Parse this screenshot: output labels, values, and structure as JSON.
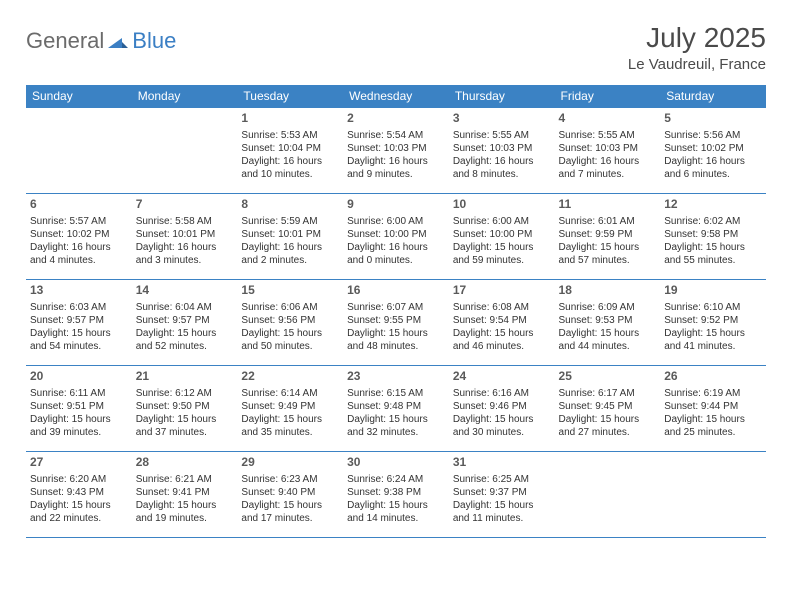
{
  "logo": {
    "general": "General",
    "blue": "Blue"
  },
  "title": "July 2025",
  "location": "Le Vaudreuil, France",
  "colors": {
    "header_bg": "#3b82c4",
    "header_text": "#ffffff",
    "border": "#3b82c4",
    "logo_blue": "#3b7fc4",
    "logo_gray": "#6b6b6b",
    "text": "#333333"
  },
  "day_headers": [
    "Sunday",
    "Monday",
    "Tuesday",
    "Wednesday",
    "Thursday",
    "Friday",
    "Saturday"
  ],
  "weeks": [
    [
      null,
      null,
      {
        "n": "1",
        "sr": "Sunrise: 5:53 AM",
        "ss": "Sunset: 10:04 PM",
        "dl": "Daylight: 16 hours and 10 minutes."
      },
      {
        "n": "2",
        "sr": "Sunrise: 5:54 AM",
        "ss": "Sunset: 10:03 PM",
        "dl": "Daylight: 16 hours and 9 minutes."
      },
      {
        "n": "3",
        "sr": "Sunrise: 5:55 AM",
        "ss": "Sunset: 10:03 PM",
        "dl": "Daylight: 16 hours and 8 minutes."
      },
      {
        "n": "4",
        "sr": "Sunrise: 5:55 AM",
        "ss": "Sunset: 10:03 PM",
        "dl": "Daylight: 16 hours and 7 minutes."
      },
      {
        "n": "5",
        "sr": "Sunrise: 5:56 AM",
        "ss": "Sunset: 10:02 PM",
        "dl": "Daylight: 16 hours and 6 minutes."
      }
    ],
    [
      {
        "n": "6",
        "sr": "Sunrise: 5:57 AM",
        "ss": "Sunset: 10:02 PM",
        "dl": "Daylight: 16 hours and 4 minutes."
      },
      {
        "n": "7",
        "sr": "Sunrise: 5:58 AM",
        "ss": "Sunset: 10:01 PM",
        "dl": "Daylight: 16 hours and 3 minutes."
      },
      {
        "n": "8",
        "sr": "Sunrise: 5:59 AM",
        "ss": "Sunset: 10:01 PM",
        "dl": "Daylight: 16 hours and 2 minutes."
      },
      {
        "n": "9",
        "sr": "Sunrise: 6:00 AM",
        "ss": "Sunset: 10:00 PM",
        "dl": "Daylight: 16 hours and 0 minutes."
      },
      {
        "n": "10",
        "sr": "Sunrise: 6:00 AM",
        "ss": "Sunset: 10:00 PM",
        "dl": "Daylight: 15 hours and 59 minutes."
      },
      {
        "n": "11",
        "sr": "Sunrise: 6:01 AM",
        "ss": "Sunset: 9:59 PM",
        "dl": "Daylight: 15 hours and 57 minutes."
      },
      {
        "n": "12",
        "sr": "Sunrise: 6:02 AM",
        "ss": "Sunset: 9:58 PM",
        "dl": "Daylight: 15 hours and 55 minutes."
      }
    ],
    [
      {
        "n": "13",
        "sr": "Sunrise: 6:03 AM",
        "ss": "Sunset: 9:57 PM",
        "dl": "Daylight: 15 hours and 54 minutes."
      },
      {
        "n": "14",
        "sr": "Sunrise: 6:04 AM",
        "ss": "Sunset: 9:57 PM",
        "dl": "Daylight: 15 hours and 52 minutes."
      },
      {
        "n": "15",
        "sr": "Sunrise: 6:06 AM",
        "ss": "Sunset: 9:56 PM",
        "dl": "Daylight: 15 hours and 50 minutes."
      },
      {
        "n": "16",
        "sr": "Sunrise: 6:07 AM",
        "ss": "Sunset: 9:55 PM",
        "dl": "Daylight: 15 hours and 48 minutes."
      },
      {
        "n": "17",
        "sr": "Sunrise: 6:08 AM",
        "ss": "Sunset: 9:54 PM",
        "dl": "Daylight: 15 hours and 46 minutes."
      },
      {
        "n": "18",
        "sr": "Sunrise: 6:09 AM",
        "ss": "Sunset: 9:53 PM",
        "dl": "Daylight: 15 hours and 44 minutes."
      },
      {
        "n": "19",
        "sr": "Sunrise: 6:10 AM",
        "ss": "Sunset: 9:52 PM",
        "dl": "Daylight: 15 hours and 41 minutes."
      }
    ],
    [
      {
        "n": "20",
        "sr": "Sunrise: 6:11 AM",
        "ss": "Sunset: 9:51 PM",
        "dl": "Daylight: 15 hours and 39 minutes."
      },
      {
        "n": "21",
        "sr": "Sunrise: 6:12 AM",
        "ss": "Sunset: 9:50 PM",
        "dl": "Daylight: 15 hours and 37 minutes."
      },
      {
        "n": "22",
        "sr": "Sunrise: 6:14 AM",
        "ss": "Sunset: 9:49 PM",
        "dl": "Daylight: 15 hours and 35 minutes."
      },
      {
        "n": "23",
        "sr": "Sunrise: 6:15 AM",
        "ss": "Sunset: 9:48 PM",
        "dl": "Daylight: 15 hours and 32 minutes."
      },
      {
        "n": "24",
        "sr": "Sunrise: 6:16 AM",
        "ss": "Sunset: 9:46 PM",
        "dl": "Daylight: 15 hours and 30 minutes."
      },
      {
        "n": "25",
        "sr": "Sunrise: 6:17 AM",
        "ss": "Sunset: 9:45 PM",
        "dl": "Daylight: 15 hours and 27 minutes."
      },
      {
        "n": "26",
        "sr": "Sunrise: 6:19 AM",
        "ss": "Sunset: 9:44 PM",
        "dl": "Daylight: 15 hours and 25 minutes."
      }
    ],
    [
      {
        "n": "27",
        "sr": "Sunrise: 6:20 AM",
        "ss": "Sunset: 9:43 PM",
        "dl": "Daylight: 15 hours and 22 minutes."
      },
      {
        "n": "28",
        "sr": "Sunrise: 6:21 AM",
        "ss": "Sunset: 9:41 PM",
        "dl": "Daylight: 15 hours and 19 minutes."
      },
      {
        "n": "29",
        "sr": "Sunrise: 6:23 AM",
        "ss": "Sunset: 9:40 PM",
        "dl": "Daylight: 15 hours and 17 minutes."
      },
      {
        "n": "30",
        "sr": "Sunrise: 6:24 AM",
        "ss": "Sunset: 9:38 PM",
        "dl": "Daylight: 15 hours and 14 minutes."
      },
      {
        "n": "31",
        "sr": "Sunrise: 6:25 AM",
        "ss": "Sunset: 9:37 PM",
        "dl": "Daylight: 15 hours and 11 minutes."
      },
      null,
      null
    ]
  ]
}
